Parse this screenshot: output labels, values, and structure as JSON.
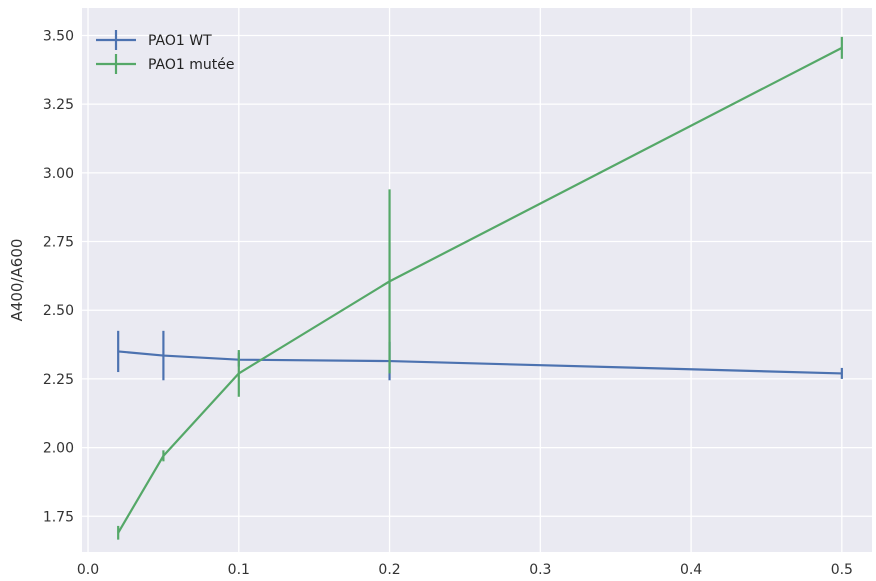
{
  "chart_data": {
    "type": "line",
    "title": "",
    "xlabel": "",
    "ylabel": "A400/A600",
    "xlim": [
      -0.004,
      0.52
    ],
    "ylim": [
      1.62,
      3.6
    ],
    "xticks": [
      0.0,
      0.1,
      0.2,
      0.3,
      0.4,
      0.5
    ],
    "xtick_labels": [
      "0.0",
      "0.1",
      "0.2",
      "0.3",
      "0.4",
      "0.5"
    ],
    "yticks": [
      1.75,
      2.0,
      2.25,
      2.5,
      2.75,
      3.0,
      3.25,
      3.5
    ],
    "ytick_labels": [
      "1.75",
      "2.00",
      "2.25",
      "2.50",
      "2.75",
      "3.00",
      "3.25",
      "3.50"
    ],
    "grid": true,
    "legend_position": "top-left",
    "series": [
      {
        "name": "PAO1 WT",
        "color": "#4c72b0",
        "x": [
          0.02,
          0.05,
          0.1,
          0.2,
          0.5
        ],
        "y": [
          2.35,
          2.335,
          2.32,
          2.315,
          2.27
        ],
        "yerr": [
          0.075,
          0.09,
          0.025,
          0.07,
          0.02
        ]
      },
      {
        "name": "PAO1 mutée",
        "color": "#55a868",
        "x": [
          0.02,
          0.05,
          0.1,
          0.2,
          0.5
        ],
        "y": [
          1.69,
          1.97,
          2.27,
          2.605,
          3.455
        ],
        "yerr": [
          0.025,
          0.02,
          0.085,
          0.335,
          0.04
        ]
      }
    ]
  }
}
